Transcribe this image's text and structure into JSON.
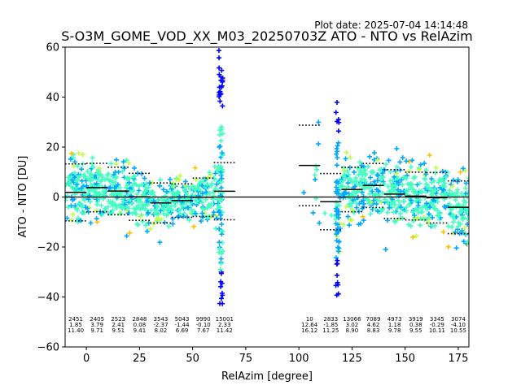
{
  "chart_data": {
    "type": "scatter",
    "title": "S-O3M_GOME_VOD_XX_M03_20250703Z ATO - NTO vs RelAzim",
    "plot_date": "Plot date: 2025-07-04 14:14:48",
    "xlabel": "RelAzim [degree]",
    "ylabel": "ATO - NTO [DU]",
    "xlim": [
      -10,
      180
    ],
    "ylim": [
      -60,
      60
    ],
    "xticks": [
      0,
      25,
      50,
      75,
      100,
      125,
      150,
      175
    ],
    "yticks": [
      -60,
      -40,
      -20,
      0,
      20,
      40,
      60
    ],
    "xtick_labels": [
      "0",
      "25",
      "50",
      "75",
      "100",
      "125",
      "150",
      "175"
    ],
    "ytick_labels": [
      "−60",
      "−40",
      "−20",
      "0",
      "20",
      "40",
      "60"
    ],
    "grid": false,
    "legend": "none",
    "colormap": "jet (point density)",
    "reference_line_y": 0,
    "bins": [
      {
        "x_start": -10,
        "x_end": 0,
        "count": "2451",
        "mean": "1.85",
        "std": "11.40",
        "mean_val": 1.85,
        "std_val": 11.4
      },
      {
        "x_start": 0,
        "x_end": 10,
        "count": "2405",
        "mean": "3.79",
        "std": "9.71",
        "mean_val": 3.79,
        "std_val": 9.71
      },
      {
        "x_start": 10,
        "x_end": 20,
        "count": "2523",
        "mean": "2.41",
        "std": "9.51",
        "mean_val": 2.41,
        "std_val": 9.51
      },
      {
        "x_start": 20,
        "x_end": 30,
        "count": "2848",
        "mean": "0.08",
        "std": "9.41",
        "mean_val": 0.08,
        "std_val": 9.41
      },
      {
        "x_start": 30,
        "x_end": 40,
        "count": "3543",
        "mean": "-2.37",
        "std": "8.02",
        "mean_val": -2.37,
        "std_val": 8.02
      },
      {
        "x_start": 40,
        "x_end": 50,
        "count": "5043",
        "mean": "-1.44",
        "std": "6.69",
        "mean_val": -1.44,
        "std_val": 6.69
      },
      {
        "x_start": 50,
        "x_end": 60,
        "count": "9990",
        "mean": "-0.10",
        "std": "7.67",
        "mean_val": -0.1,
        "std_val": 7.67
      },
      {
        "x_start": 60,
        "x_end": 70,
        "count": "15001",
        "mean": "2.33",
        "std": "11.42",
        "mean_val": 2.33,
        "std_val": 11.42
      },
      {
        "x_start": 100,
        "x_end": 110,
        "count": "10",
        "mean": "12.64",
        "std": "16.12",
        "mean_val": 12.64,
        "std_val": 16.12
      },
      {
        "x_start": 110,
        "x_end": 120,
        "count": "2833",
        "mean": "-1.85",
        "std": "11.25",
        "mean_val": -1.85,
        "std_val": 11.25
      },
      {
        "x_start": 120,
        "x_end": 130,
        "count": "13066",
        "mean": "3.02",
        "std": "8.90",
        "mean_val": 3.02,
        "std_val": 8.9
      },
      {
        "x_start": 130,
        "x_end": 140,
        "count": "7089",
        "mean": "4.62",
        "std": "8.83",
        "mean_val": 4.62,
        "std_val": 8.83
      },
      {
        "x_start": 140,
        "x_end": 150,
        "count": "4973",
        "mean": "1.18",
        "std": "9.78",
        "mean_val": 1.18,
        "std_val": 9.78
      },
      {
        "x_start": 150,
        "x_end": 160,
        "count": "3919",
        "mean": "0.38",
        "std": "9.55",
        "mean_val": 0.38,
        "std_val": 9.55
      },
      {
        "x_start": 160,
        "x_end": 170,
        "count": "3345",
        "mean": "-0.29",
        "std": "10.11",
        "mean_val": -0.29,
        "std_val": 10.11
      },
      {
        "x_start": 170,
        "x_end": 180,
        "count": "3074",
        "mean": "-4.10",
        "std": "10.55",
        "mean_val": -4.1,
        "std_val": 10.55
      }
    ],
    "colors": {
      "low": "#0000ff",
      "mid_low": "#00a8ff",
      "mid": "#40ffbf",
      "mid_high": "#bfff40",
      "high": "#ffc000"
    }
  }
}
